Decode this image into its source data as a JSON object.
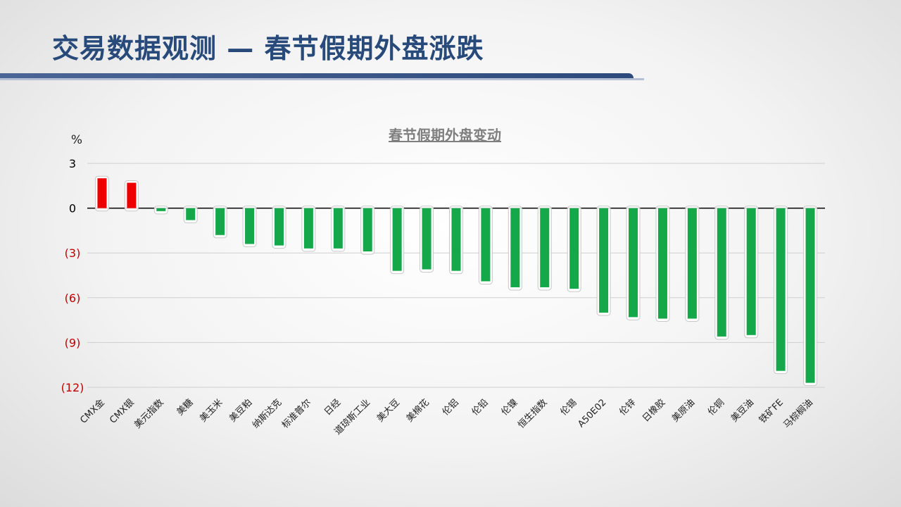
{
  "page": {
    "title": "交易数据观测 — 春节假期外盘涨跌"
  },
  "colors": {
    "positive": "#ee0000",
    "negative": "#14a84a",
    "title": "#274a7a",
    "neg_tick": "#c00000",
    "pos_tick": "#000000",
    "chart_title": "#7f7f7f"
  },
  "chart_data": {
    "type": "bar",
    "title": "春节假期外盘变动",
    "ylabel": "%",
    "ylim": [
      -12,
      3
    ],
    "yticks": [
      3,
      0,
      -3,
      -6,
      -9,
      -12
    ],
    "ytick_labels": [
      "3",
      "0",
      "(3)",
      "(6)",
      "(9)",
      "(12)"
    ],
    "grid": true,
    "categories": [
      "CMX金",
      "CMX银",
      "美元指数",
      "美糖",
      "美玉米",
      "美豆粕",
      "纳斯达克",
      "标准普尔",
      "日经",
      "道琼斯工业",
      "美大豆",
      "美棉花",
      "伦铝",
      "伦铅",
      "伦镍",
      "恒生指数",
      "伦锡",
      "A50E02",
      "伦锌",
      "日橡胶",
      "美原油",
      "伦铜",
      "美豆油",
      "铁矿FE",
      "马棕榈油"
    ],
    "values": [
      2.0,
      1.7,
      -0.2,
      -0.8,
      -1.8,
      -2.4,
      -2.5,
      -2.7,
      -2.7,
      -2.9,
      -4.2,
      -4.1,
      -4.2,
      -4.9,
      -5.3,
      -5.3,
      -5.4,
      -7.0,
      -7.3,
      -7.4,
      -7.4,
      -8.6,
      -8.5,
      -10.9,
      -11.7
    ]
  }
}
